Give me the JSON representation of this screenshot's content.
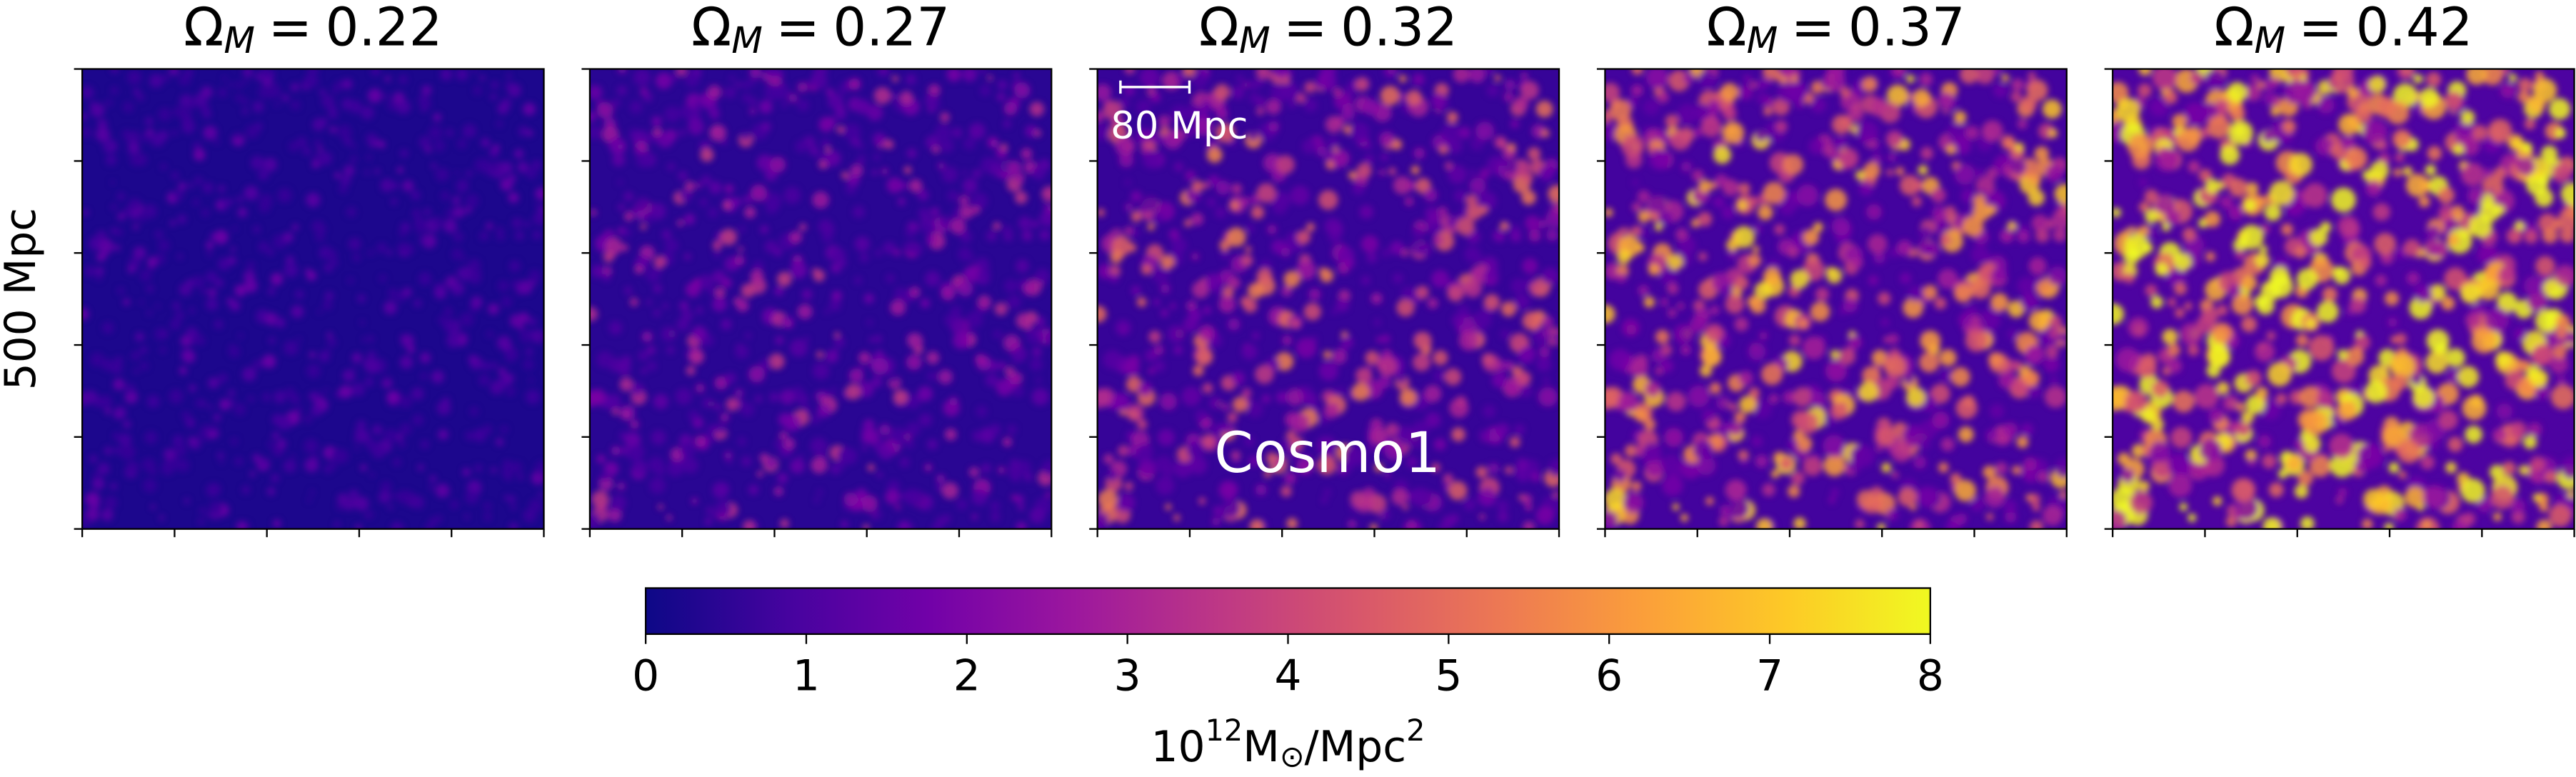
{
  "chart_data": {
    "type": "image-grid",
    "panels": [
      {
        "symbol": "Ω",
        "subscript": "M",
        "relation": "=",
        "value": 0.22
      },
      {
        "symbol": "Ω",
        "subscript": "M",
        "relation": "=",
        "value": 0.27
      },
      {
        "symbol": "Ω",
        "subscript": "M",
        "relation": "=",
        "value": 0.32
      },
      {
        "symbol": "Ω",
        "subscript": "M",
        "relation": "=",
        "value": 0.37
      },
      {
        "symbol": "Ω",
        "subscript": "M",
        "relation": "=",
        "value": 0.42
      }
    ],
    "ylabel": "500 Mpc",
    "scalebar": "80 Mpc",
    "annotation": "Cosmo1",
    "colorbar": {
      "colormap": "plasma",
      "lim": [
        0,
        8
      ],
      "ticks": [
        0,
        1,
        2,
        3,
        4,
        5,
        6,
        7,
        8
      ],
      "label_base": "10",
      "label_exponent": "12",
      "label_unit": "M",
      "label_unit_subscript": "⊙",
      "label_per": "/Mpc",
      "label_per_exponent": "2"
    }
  }
}
